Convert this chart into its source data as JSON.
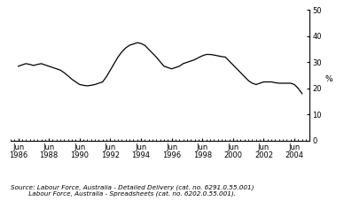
{
  "title": "",
  "ylabel": "%",
  "ylim": [
    0,
    50
  ],
  "yticks": [
    0,
    10,
    20,
    30,
    40,
    50
  ],
  "source_line1": "Source: Labour Force, Australia - Detailed Delivery (cat. no. 6291.0.55.001)",
  "source_line2": "         Labour Force, Australia - Spreadsheets (cat. no. 6202.0.55.001).",
  "xtick_years": [
    1986,
    1988,
    1990,
    1992,
    1994,
    1996,
    1998,
    2000,
    2002,
    2004
  ],
  "xtick_labels": [
    "Jun\n1986",
    "Jun\n1988",
    "Jun\n1990",
    "Jun\n1992",
    "Jun\n1994",
    "Jun\n1996",
    "Jun\n1998",
    "Jun\n2000",
    "Jun\n2002",
    "Jun\n2004"
  ],
  "line_color": "#000000",
  "line_width": 0.9,
  "xlim_start": 1986.0,
  "xlim_end": 2005.5,
  "x": [
    1986.5,
    1986.75,
    1987.0,
    1987.25,
    1987.5,
    1987.75,
    1988.0,
    1988.25,
    1988.5,
    1988.75,
    1989.0,
    1989.25,
    1989.5,
    1989.75,
    1990.0,
    1990.25,
    1990.5,
    1990.75,
    1991.0,
    1991.25,
    1991.5,
    1991.75,
    1992.0,
    1992.25,
    1992.5,
    1992.75,
    1993.0,
    1993.25,
    1993.5,
    1993.75,
    1994.0,
    1994.25,
    1994.5,
    1994.75,
    1995.0,
    1995.25,
    1995.5,
    1995.75,
    1996.0,
    1996.25,
    1996.5,
    1996.75,
    1997.0,
    1997.25,
    1997.5,
    1997.75,
    1998.0,
    1998.25,
    1998.5,
    1998.75,
    1999.0,
    1999.25,
    1999.5,
    1999.75,
    2000.0,
    2000.25,
    2000.5,
    2000.75,
    2001.0,
    2001.25,
    2001.5,
    2001.75,
    2002.0,
    2002.25,
    2002.5,
    2002.75,
    2003.0,
    2003.25,
    2003.5,
    2003.75,
    2004.0,
    2004.25,
    2004.5,
    2004.75,
    2005.0
  ],
  "y": [
    28.5,
    29.0,
    29.5,
    29.2,
    28.8,
    29.2,
    29.5,
    29.0,
    28.5,
    28.0,
    27.5,
    27.0,
    26.0,
    24.8,
    23.5,
    22.5,
    21.5,
    21.2,
    21.0,
    21.2,
    21.5,
    22.0,
    22.5,
    24.5,
    27.0,
    29.5,
    32.0,
    34.0,
    35.5,
    36.5,
    37.0,
    37.5,
    37.2,
    36.5,
    35.0,
    33.5,
    32.0,
    30.2,
    28.5,
    28.0,
    27.5,
    28.0,
    28.5,
    29.5,
    30.0,
    30.5,
    31.0,
    31.8,
    32.5,
    33.0,
    33.0,
    32.8,
    32.5,
    32.2,
    32.0,
    30.5,
    29.0,
    27.5,
    26.0,
    24.5,
    23.0,
    22.0,
    21.5,
    22.0,
    22.5,
    22.5,
    22.5,
    22.2,
    22.0,
    22.0,
    22.0,
    22.0,
    21.5,
    20.0,
    18.0
  ],
  "bg_color": "#ffffff",
  "font_size": 6.5
}
